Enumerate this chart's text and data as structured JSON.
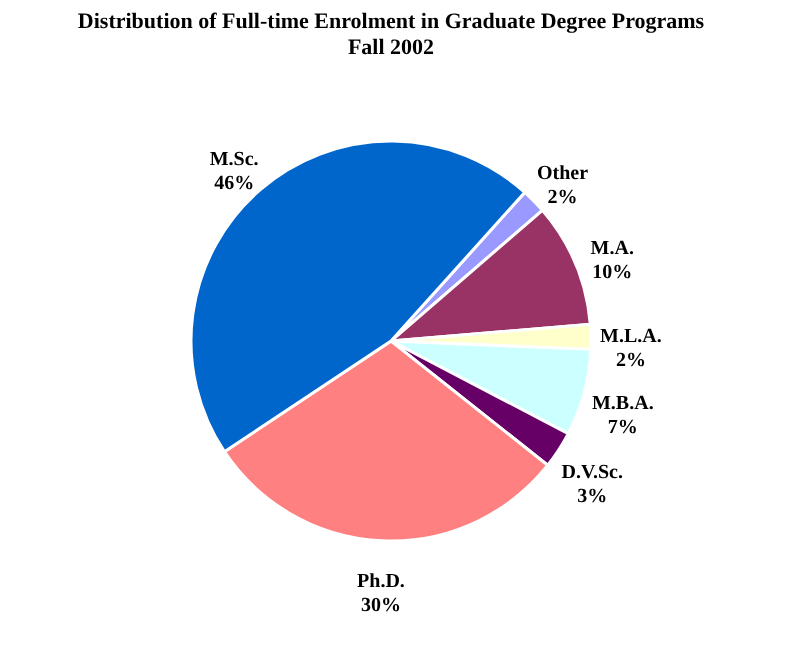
{
  "chart_data": {
    "type": "pie",
    "title": [
      "Distribution of Full-time Enrolment in Graduate Degree Programs",
      "Fall  2002"
    ],
    "categories": [
      "Other",
      "M.A.",
      "M.L.A.",
      "M.B.A.",
      "D.V.Sc.",
      "Ph.D.",
      "M.Sc."
    ],
    "values": [
      2,
      10,
      2,
      7,
      3,
      30,
      46
    ],
    "value_labels": [
      "2%",
      "10%",
      "2%",
      "7%",
      "3%",
      "30%",
      "46%"
    ],
    "colors": [
      "#9999ff",
      "#993366",
      "#ffffcc",
      "#ccffff",
      "#660066",
      "#ff8080",
      "#0066cc"
    ],
    "legend": false
  }
}
